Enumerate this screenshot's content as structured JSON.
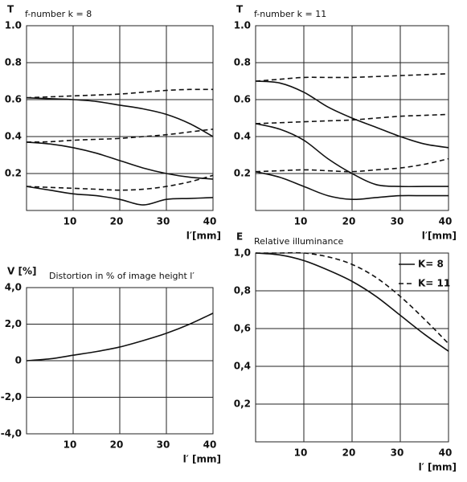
{
  "chart_data": [
    {
      "type": "line",
      "y_label": "T",
      "title": "f-number k = 8",
      "x_label": "l′[mm]",
      "x": [
        0,
        5,
        10,
        15,
        20,
        25,
        30,
        35,
        40
      ],
      "xlim": [
        0,
        40
      ],
      "xticks": [
        10,
        20,
        30,
        40
      ],
      "ylim": [
        0,
        1
      ],
      "yticks": [
        {
          "value": 0.2,
          "label": "0.2"
        },
        {
          "value": 0.4,
          "label": "0.4"
        },
        {
          "value": 0.6,
          "label": "0.6"
        },
        {
          "value": 0.8,
          "label": "0.8"
        },
        {
          "value": 1,
          "label": "1.0"
        }
      ],
      "grid": true,
      "series": [
        {
          "color": "#111111",
          "style": "dashed",
          "values": [
            0.61,
            0.615,
            0.62,
            0.625,
            0.63,
            0.64,
            0.65,
            0.655,
            0.655
          ]
        },
        {
          "color": "#111111",
          "style": "solid",
          "values": [
            0.61,
            0.605,
            0.6,
            0.59,
            0.57,
            0.55,
            0.52,
            0.47,
            0.4
          ]
        },
        {
          "color": "#111111",
          "style": "dashed",
          "values": [
            0.37,
            0.372,
            0.38,
            0.385,
            0.39,
            0.4,
            0.41,
            0.425,
            0.44
          ]
        },
        {
          "color": "#111111",
          "style": "solid",
          "values": [
            0.37,
            0.36,
            0.34,
            0.31,
            0.27,
            0.23,
            0.2,
            0.18,
            0.17
          ]
        },
        {
          "color": "#111111",
          "style": "dashed",
          "values": [
            0.13,
            0.125,
            0.12,
            0.115,
            0.11,
            0.115,
            0.13,
            0.155,
            0.19
          ]
        },
        {
          "color": "#111111",
          "style": "solid",
          "values": [
            0.13,
            0.11,
            0.09,
            0.08,
            0.06,
            0.03,
            0.06,
            0.065,
            0.07
          ]
        }
      ]
    },
    {
      "type": "line",
      "y_label": "T",
      "title": "f-number k = 11",
      "x_label": "l′[mm]",
      "x": [
        0,
        5,
        10,
        15,
        20,
        25,
        30,
        35,
        40
      ],
      "xlim": [
        0,
        40
      ],
      "xticks": [
        10,
        20,
        30,
        40
      ],
      "ylim": [
        0,
        1
      ],
      "yticks": [
        {
          "value": 0.2,
          "label": "0.2"
        },
        {
          "value": 0.4,
          "label": "0.4"
        },
        {
          "value": 0.6,
          "label": "0.6"
        },
        {
          "value": 0.8,
          "label": "0.8"
        },
        {
          "value": 1,
          "label": "1.0"
        }
      ],
      "grid": true,
      "series": [
        {
          "color": "#111111",
          "style": "dashed",
          "values": [
            0.7,
            0.71,
            0.72,
            0.72,
            0.72,
            0.725,
            0.73,
            0.735,
            0.74
          ]
        },
        {
          "color": "#111111",
          "style": "solid",
          "values": [
            0.7,
            0.69,
            0.64,
            0.56,
            0.5,
            0.45,
            0.4,
            0.36,
            0.34
          ]
        },
        {
          "color": "#111111",
          "style": "dashed",
          "values": [
            0.47,
            0.475,
            0.48,
            0.485,
            0.49,
            0.5,
            0.51,
            0.515,
            0.52
          ]
        },
        {
          "color": "#111111",
          "style": "solid",
          "values": [
            0.47,
            0.44,
            0.38,
            0.28,
            0.2,
            0.14,
            0.13,
            0.13,
            0.13
          ]
        },
        {
          "color": "#111111",
          "style": "dashed",
          "values": [
            0.21,
            0.215,
            0.22,
            0.215,
            0.21,
            0.22,
            0.23,
            0.25,
            0.28
          ]
        },
        {
          "color": "#111111",
          "style": "solid",
          "values": [
            0.21,
            0.18,
            0.13,
            0.08,
            0.06,
            0.07,
            0.08,
            0.08,
            0.08
          ]
        }
      ]
    },
    {
      "type": "line",
      "y_label": "V [%]",
      "title": "Distortion in % of image height l′",
      "x_label": "l′ [mm]",
      "x": [
        0,
        5,
        10,
        15,
        20,
        25,
        30,
        35,
        40
      ],
      "xlim": [
        0,
        40
      ],
      "xticks": [
        10,
        20,
        30,
        40
      ],
      "ylim": [
        -4,
        4
      ],
      "yticks": [
        {
          "value": -4,
          "label": "-4,0"
        },
        {
          "value": -2,
          "label": "-2,0"
        },
        0,
        {
          "value": 2,
          "label": "2,0"
        },
        {
          "value": 4,
          "label": "4,0"
        }
      ],
      "grid": true,
      "series": [
        {
          "color": "#111111",
          "style": "solid",
          "values": [
            0,
            0.1,
            0.3,
            0.5,
            0.75,
            1.1,
            1.5,
            2.0,
            2.6
          ]
        }
      ]
    },
    {
      "type": "line",
      "y_label": "E",
      "title": "Relative illuminance",
      "x_label": "l′ [mm]",
      "x": [
        0,
        5,
        10,
        15,
        20,
        25,
        30,
        35,
        40
      ],
      "xlim": [
        0,
        40
      ],
      "xticks": [
        10,
        20,
        30,
        40
      ],
      "ylim": [
        0,
        1
      ],
      "yticks": [
        {
          "value": 0.2,
          "label": "0,2"
        },
        {
          "value": 0.4,
          "label": "0,4"
        },
        {
          "value": 0.6,
          "label": "0,6"
        },
        {
          "value": 0.8,
          "label": "0,8"
        },
        {
          "value": 1,
          "label": "1,0"
        }
      ],
      "grid": true,
      "legend": "upper right",
      "series": [
        {
          "name": "K= 8",
          "color": "#111111",
          "style": "solid",
          "values": [
            1.0,
            0.99,
            0.96,
            0.91,
            0.85,
            0.77,
            0.67,
            0.57,
            0.48
          ]
        },
        {
          "name": "K= 11",
          "color": "#111111",
          "style": "dashed",
          "values": [
            1.0,
            1.0,
            1.0,
            0.98,
            0.94,
            0.87,
            0.77,
            0.65,
            0.52
          ]
        }
      ]
    }
  ]
}
